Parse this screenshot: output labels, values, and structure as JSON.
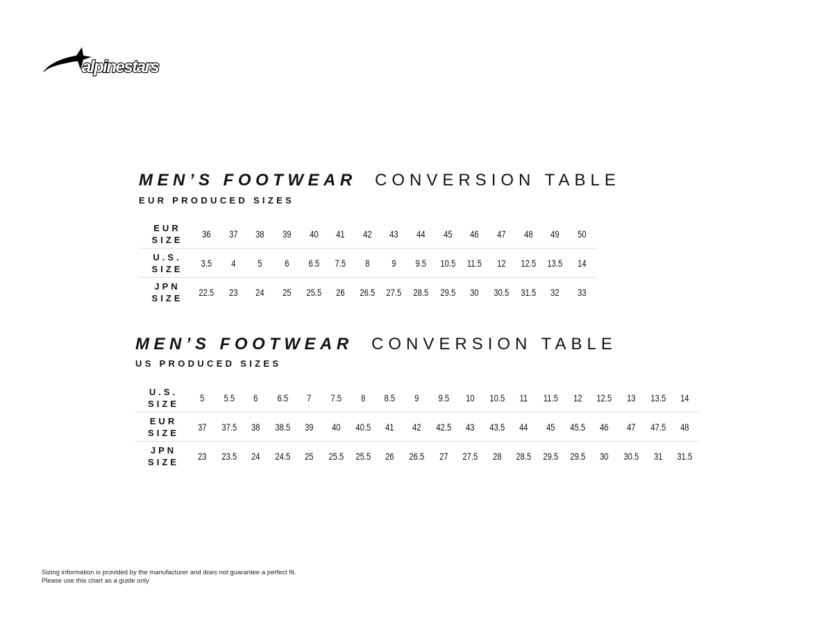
{
  "logo": {
    "text": "alpinestars"
  },
  "tables": [
    {
      "title_bold": "MEN’S FOOTWEAR",
      "title_light": "CONVERSION TABLE",
      "subtitle": "EUR PRODUCED SIZES",
      "rows": [
        {
          "label1": "EUR",
          "label2": "SIZE",
          "values": [
            "36",
            "37",
            "38",
            "39",
            "40",
            "41",
            "42",
            "43",
            "44",
            "45",
            "46",
            "47",
            "48",
            "49",
            "50"
          ]
        },
        {
          "label1": "U.S.",
          "label2": "SIZE",
          "values": [
            "3.5",
            "4",
            "5",
            "6",
            "6.5",
            "7.5",
            "8",
            "9",
            "9.5",
            "10.5",
            "11.5",
            "12",
            "12.5",
            "13.5",
            "14"
          ]
        },
        {
          "label1": "JPN",
          "label2": "SIZE",
          "values": [
            "22.5",
            "23",
            "24",
            "25",
            "25.5",
            "26",
            "26.5",
            "27.5",
            "28.5",
            "29.5",
            "30",
            "30.5",
            "31.5",
            "32",
            "33"
          ]
        }
      ]
    },
    {
      "title_bold": "MEN’S FOOTWEAR",
      "title_light": "CONVERSION TABLE",
      "subtitle": "US PRODUCED SIZES",
      "rows": [
        {
          "label1": "U.S.",
          "label2": "SIZE",
          "values": [
            "5",
            "5.5",
            "6",
            "6.5",
            "7",
            "7.5",
            "8",
            "8.5",
            "9",
            "9.5",
            "10",
            "10.5",
            "11",
            "11.5",
            "12",
            "12.5",
            "13",
            "13.5",
            "14"
          ]
        },
        {
          "label1": "EUR",
          "label2": "SIZE",
          "values": [
            "37",
            "37.5",
            "38",
            "38.5",
            "39",
            "40",
            "40.5",
            "41",
            "42",
            "42.5",
            "43",
            "43.5",
            "44",
            "45",
            "45.5",
            "46",
            "47",
            "47.5",
            "48"
          ]
        },
        {
          "label1": "JPN",
          "label2": "SIZE",
          "values": [
            "23",
            "23.5",
            "24",
            "24.5",
            "25",
            "25.5",
            "25.5",
            "26",
            "26.5",
            "27",
            "27.5",
            "28",
            "28.5",
            "29.5",
            "29.5",
            "30",
            "30.5",
            "31",
            "31.5"
          ]
        }
      ]
    }
  ],
  "footer": {
    "line1": "Sizing information is provided by the manufacturer and does not guarantee a perfect fit.",
    "line2": "Please use this chart as a guide only"
  }
}
